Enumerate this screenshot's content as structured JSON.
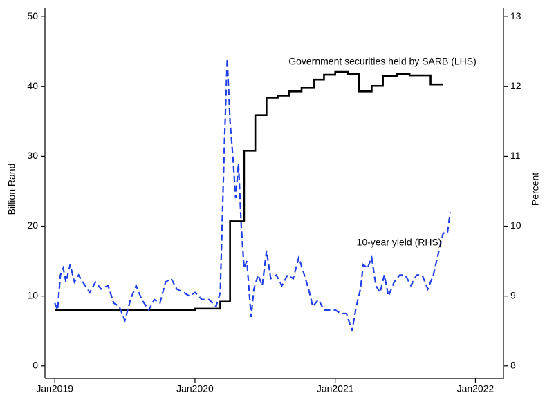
{
  "chart_data": {
    "type": "line",
    "ylabel": "Billion Rand",
    "y2label": "Percent",
    "xlim": [
      2018.93,
      2022.2
    ],
    "xticks": [
      {
        "value": 2019,
        "label": "Jan2019"
      },
      {
        "value": 2020,
        "label": "Jan2020"
      },
      {
        "value": 2021,
        "label": "Jan2021"
      },
      {
        "value": 2022,
        "label": "Jan2022"
      }
    ],
    "ylim": [
      -1.8,
      51.2
    ],
    "yticks": [
      0,
      10,
      20,
      30,
      40,
      50
    ],
    "y2lim": [
      7.82,
      13.12
    ],
    "y2ticks": [
      8,
      9,
      10,
      11,
      12,
      13
    ],
    "series": [
      {
        "name": "Government securities held by SARB (LHS)",
        "color": "#000000",
        "dash": false,
        "drawstyle": "steps-post",
        "x": [
          2019.0,
          2019.5,
          2020.0,
          2020.18,
          2020.25,
          2020.35,
          2020.43,
          2020.51,
          2020.59,
          2020.67,
          2020.76,
          2020.85,
          2020.92,
          2021.0,
          2021.09,
          2021.17,
          2021.26,
          2021.34,
          2021.44,
          2021.53,
          2021.68,
          2021.77
        ],
        "values": [
          8.0,
          8.0,
          8.2,
          9.2,
          20.7,
          30.8,
          35.9,
          38.4,
          38.7,
          39.3,
          39.8,
          41.0,
          41.7,
          42.1,
          41.8,
          39.3,
          40.1,
          41.5,
          41.8,
          41.6,
          40.3,
          40.3
        ]
      },
      {
        "name": "10-year yield (RHS)",
        "color": "#1f3fe8",
        "dash": true,
        "axis": "y2",
        "drawstyle": "linear",
        "x": [
          2019.0,
          2019.02,
          2019.04,
          2019.06,
          2019.08,
          2019.11,
          2019.14,
          2019.17,
          2019.2,
          2019.25,
          2019.29,
          2019.33,
          2019.38,
          2019.42,
          2019.46,
          2019.5,
          2019.54,
          2019.58,
          2019.62,
          2019.67,
          2019.71,
          2019.75,
          2019.79,
          2019.83,
          2019.87,
          2019.92,
          2019.96,
          2020.0,
          2020.05,
          2020.1,
          2020.15,
          2020.18,
          2020.21,
          2020.23,
          2020.25,
          2020.27,
          2020.29,
          2020.31,
          2020.33,
          2020.35,
          2020.37,
          2020.4,
          2020.42,
          2020.45,
          2020.48,
          2020.51,
          2020.54,
          2020.58,
          2020.62,
          2020.66,
          2020.7,
          2020.74,
          2020.78,
          2020.81,
          2020.84,
          2020.88,
          2020.92,
          2020.96,
          2021.0,
          2021.04,
          2021.08,
          2021.12,
          2021.15,
          2021.18,
          2021.2,
          2021.23,
          2021.26,
          2021.29,
          2021.32,
          2021.35,
          2021.38,
          2021.42,
          2021.46,
          2021.5,
          2021.54,
          2021.58,
          2021.62,
          2021.66,
          2021.7,
          2021.74,
          2021.77,
          2021.8,
          2021.82
        ],
        "values": [
          8.9,
          8.8,
          9.3,
          9.4,
          9.2,
          9.45,
          9.2,
          9.3,
          9.2,
          9.05,
          9.2,
          9.1,
          9.15,
          8.9,
          8.85,
          8.65,
          8.95,
          9.15,
          8.95,
          8.8,
          8.95,
          8.9,
          9.2,
          9.25,
          9.1,
          9.05,
          9.0,
          9.05,
          8.95,
          8.95,
          8.85,
          9.05,
          11.2,
          12.4,
          11.5,
          11.0,
          10.4,
          10.9,
          10.0,
          9.4,
          9.5,
          8.7,
          9.1,
          9.3,
          9.15,
          9.65,
          9.25,
          9.3,
          9.15,
          9.3,
          9.25,
          9.55,
          9.3,
          9.1,
          8.85,
          8.95,
          8.8,
          8.8,
          8.8,
          8.75,
          8.75,
          8.5,
          8.85,
          9.1,
          9.45,
          9.4,
          9.55,
          9.15,
          9.05,
          9.3,
          9.0,
          9.2,
          9.3,
          9.3,
          9.15,
          9.3,
          9.3,
          9.1,
          9.3,
          9.65,
          9.9,
          9.9,
          10.2
        ]
      }
    ]
  }
}
